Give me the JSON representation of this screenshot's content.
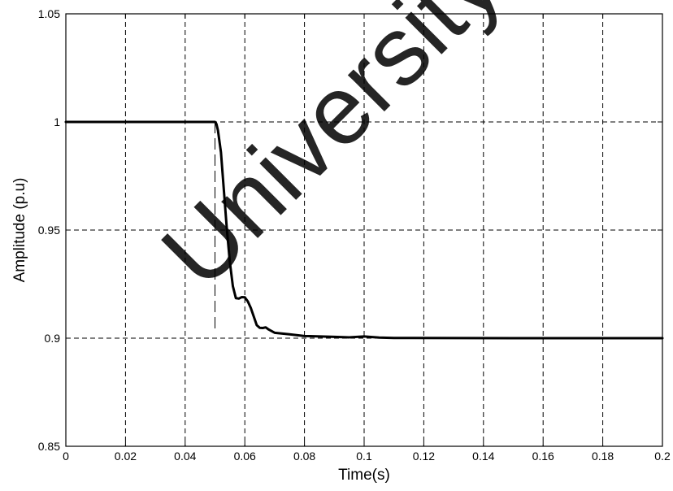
{
  "chart_data": {
    "type": "line",
    "title": "",
    "xlabel": "Time(s)",
    "ylabel": "Amplitude (p.u)",
    "xlim": [
      0,
      0.2
    ],
    "ylim": [
      0.85,
      1.05
    ],
    "grid": true,
    "xticks": [
      0,
      0.02,
      0.04,
      0.06,
      0.08,
      0.1,
      0.12,
      0.14,
      0.16,
      0.18,
      0.2
    ],
    "xtick_labels": [
      "0",
      "0.02",
      "0.04",
      "0.06",
      "0.08",
      "0.1",
      "0.12",
      "0.14",
      "0.16",
      "0.18",
      "0.2"
    ],
    "yticks": [
      0.85,
      0.9,
      0.95,
      1,
      1.05
    ],
    "ytick_labels": [
      "0.85",
      "0.9",
      "0.95",
      "1",
      "1.05"
    ],
    "series": [
      {
        "x": [
          0,
          0.02,
          0.04,
          0.048,
          0.05,
          0.0505,
          0.051,
          0.052,
          0.053,
          0.054,
          0.055,
          0.056,
          0.057,
          0.058,
          0.059,
          0.06,
          0.061,
          0.062,
          0.063,
          0.064,
          0.065,
          0.066,
          0.067,
          0.068,
          0.07,
          0.072,
          0.075,
          0.08,
          0.09,
          0.095,
          0.1,
          0.105,
          0.11,
          0.15,
          0.2
        ],
        "y": [
          1.0,
          1.0,
          1.0,
          1.0,
          1.0,
          0.999,
          0.996,
          0.986,
          0.968,
          0.95,
          0.935,
          0.924,
          0.9185,
          0.9183,
          0.919,
          0.9189,
          0.917,
          0.914,
          0.91,
          0.906,
          0.9048,
          0.9047,
          0.905,
          0.904,
          0.9025,
          0.9022,
          0.9018,
          0.901,
          0.9006,
          0.9004,
          0.9008,
          0.9003,
          0.9001,
          0.9,
          0.9
        ],
        "color": "#000000"
      }
    ],
    "annotations": [
      {
        "type": "vertical-dashed-line",
        "x": 0.05,
        "y_from": 1.0,
        "y_to": 0.904
      }
    ]
  },
  "watermark": {
    "text": "University of",
    "color": "#e3e3e3"
  }
}
